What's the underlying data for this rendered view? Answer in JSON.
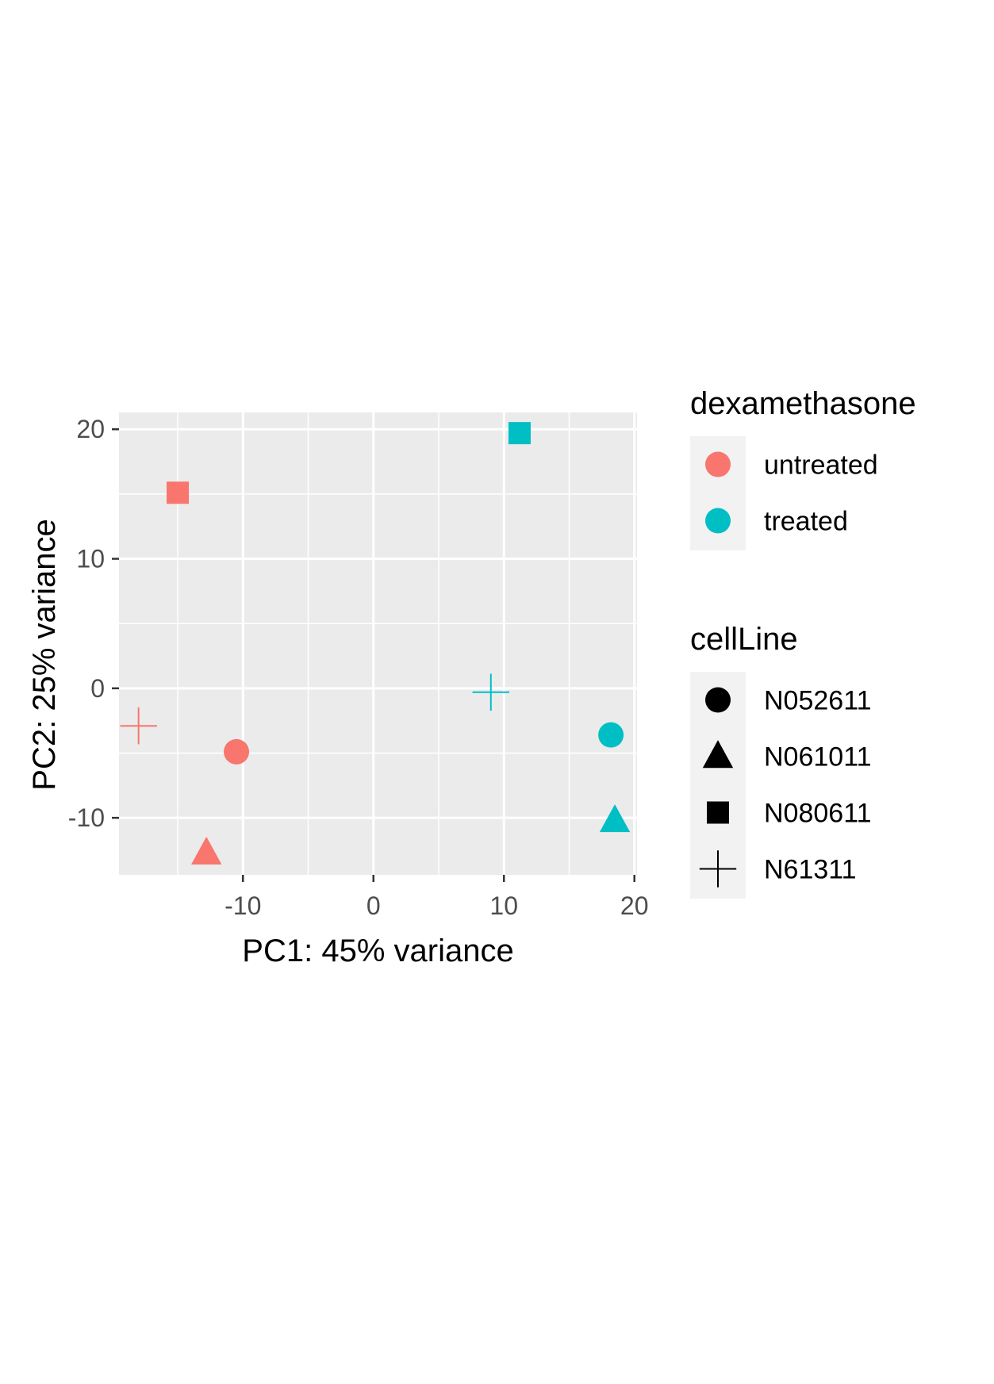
{
  "chart_data": {
    "type": "scatter",
    "xlabel": "PC1: 45% variance",
    "ylabel": "PC2: 25% variance",
    "xlim": [
      -19.5,
      20.2
    ],
    "ylim": [
      -14.4,
      21.3
    ],
    "xticks": [
      -10,
      0,
      10,
      20
    ],
    "yticks": [
      -10,
      0,
      10,
      20
    ],
    "xtick_labels": [
      "-10",
      "0",
      "10",
      "20"
    ],
    "ytick_labels": [
      "-10",
      "0",
      "10",
      "20"
    ],
    "grid": true,
    "legend_position": "right",
    "colors": {
      "untreated": "#F8766D",
      "treated": "#00BFC4",
      "panel_background": "#EBEBEB",
      "grid": "#FFFFFF",
      "legend_key_background": "#F2F2F2"
    },
    "legends": [
      {
        "title": "dexamethasone",
        "aesthetic": "color",
        "entries": [
          {
            "label": "untreated",
            "color": "#F8766D",
            "shape": "circle"
          },
          {
            "label": "treated",
            "color": "#00BFC4",
            "shape": "circle"
          }
        ]
      },
      {
        "title": "cellLine",
        "aesthetic": "shape",
        "entries": [
          {
            "label": "N052611",
            "shape": "circle"
          },
          {
            "label": "N061011",
            "shape": "triangle"
          },
          {
            "label": "N080611",
            "shape": "square"
          },
          {
            "label": "N61311",
            "shape": "plus"
          }
        ]
      }
    ],
    "points": [
      {
        "x": -10.5,
        "y": -4.9,
        "dexamethasone": "untreated",
        "cellLine": "N052611"
      },
      {
        "x": -12.8,
        "y": -12.7,
        "dexamethasone": "untreated",
        "cellLine": "N061011"
      },
      {
        "x": -15.0,
        "y": 15.1,
        "dexamethasone": "untreated",
        "cellLine": "N080611"
      },
      {
        "x": -18.0,
        "y": -2.9,
        "dexamethasone": "untreated",
        "cellLine": "N61311"
      },
      {
        "x": 18.2,
        "y": -3.6,
        "dexamethasone": "treated",
        "cellLine": "N052611"
      },
      {
        "x": 18.5,
        "y": -10.2,
        "dexamethasone": "treated",
        "cellLine": "N061011"
      },
      {
        "x": 11.2,
        "y": 19.7,
        "dexamethasone": "treated",
        "cellLine": "N080611"
      },
      {
        "x": 9.0,
        "y": -0.3,
        "dexamethasone": "treated",
        "cellLine": "N61311"
      }
    ]
  }
}
